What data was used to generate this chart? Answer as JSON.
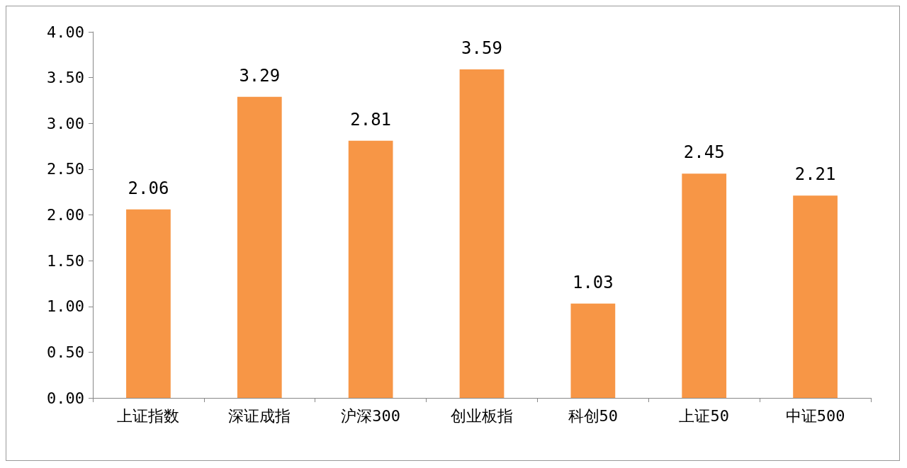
{
  "chart_data": {
    "type": "bar",
    "categories": [
      "上证指数",
      "深证成指",
      "沪深300",
      "创业板指",
      "科创50",
      "上证50",
      "中证500"
    ],
    "values": [
      2.06,
      3.29,
      2.81,
      3.59,
      1.03,
      2.45,
      2.21
    ],
    "color": "#f79646",
    "data_labels": true,
    "ylim": [
      0,
      4
    ],
    "yticks": [
      {
        "value": 0,
        "label": "0.00"
      },
      {
        "value": 0.5,
        "label": "0.50"
      },
      {
        "value": 1,
        "label": "1.00"
      },
      {
        "value": 1.5,
        "label": "1.50"
      },
      {
        "value": 2,
        "label": "2.00"
      },
      {
        "value": 2.5,
        "label": "2.50"
      },
      {
        "value": 3,
        "label": "3.00"
      },
      {
        "value": 3.5,
        "label": "3.50"
      },
      {
        "value": 4,
        "label": "4.00"
      }
    ]
  }
}
